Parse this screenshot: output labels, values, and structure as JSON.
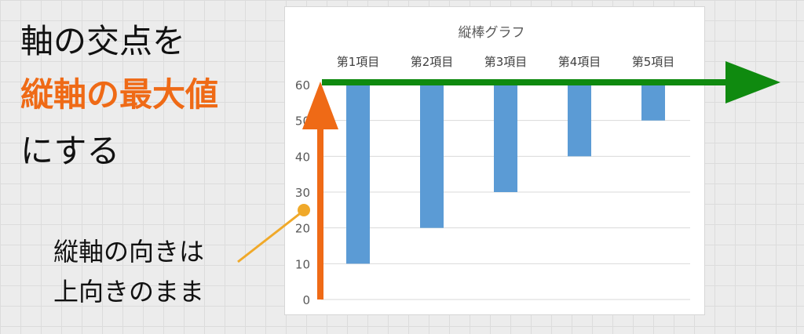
{
  "heading": {
    "line1": "軸の交点を",
    "line2": "縦軸の最大値",
    "line3": "にする"
  },
  "note": {
    "line1": "縦軸の向きは",
    "line2": "上向きのまま"
  },
  "colors": {
    "bar": "#5b9bd5",
    "accent_orange": "#ef6a16",
    "axis_green": "#0f8a0f",
    "pointer_yellow": "#f0a92a"
  },
  "chart_data": {
    "type": "bar",
    "title": "縦棒グラフ",
    "categories": [
      "第1項目",
      "第2項目",
      "第3項目",
      "第4項目",
      "第5項目"
    ],
    "values": [
      10,
      20,
      30,
      40,
      50
    ],
    "y_ticks": [
      "0",
      "10",
      "20",
      "30",
      "40",
      "50",
      "60"
    ],
    "ylim": [
      0,
      60
    ],
    "horizontal_axis_crosses_at": 60,
    "category_labels_position": "top",
    "grid": true,
    "legend": "none"
  }
}
